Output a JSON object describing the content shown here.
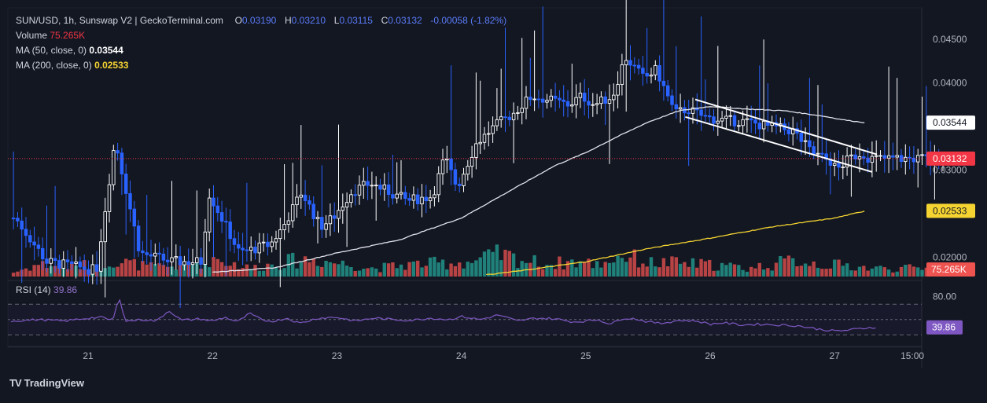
{
  "header": {
    "symbol": "SUN/USD, 1h, Sunswap V2 | GeckoTerminal.com",
    "o_label": "O",
    "o_value": "0.03190",
    "h_label": "H",
    "h_value": "0.03210",
    "l_label": "L",
    "l_value": "0.03115",
    "c_label": "C",
    "c_value": "0.03132",
    "change": "-0.00058 (-1.82%)",
    "volume_label": "Volume",
    "volume_value": "75.265K",
    "ma50_label": "MA (50, close, 0)",
    "ma50_value": "0.03544",
    "ma200_label": "MA (200, close, 0)",
    "ma200_value": "0.02533",
    "rsi_label": "RSI (14)",
    "rsi_value": "39.86"
  },
  "brand": {
    "name": "TradingView",
    "logo": "TV"
  },
  "colors": {
    "background": "#131722",
    "up": "#ffffff",
    "down": "#2962ff",
    "vol_up": "#26a69a",
    "vol_down": "#ef5350",
    "ma50": "#e0e3eb",
    "ma200": "#f5d431",
    "rsi": "#7e57c2",
    "last_price": "#f23645"
  },
  "chart_data": [
    {
      "type": "candlestick",
      "title": "SUN/USD, 1h, Sunswap V2 | GeckoTerminal.com",
      "ylim": [
        0.0178,
        0.0468
      ],
      "yticks": [
        "0.04500",
        "0.04000",
        "0.03500",
        "0.03000",
        "0.02000"
      ],
      "ytick_values": [
        0.045,
        0.04,
        0.035,
        0.03,
        0.02
      ],
      "xlabels": [
        "21",
        "22",
        "23",
        "24",
        "25",
        "26",
        "27",
        "15:00"
      ],
      "xlabel_positions": [
        0.0,
        1.0,
        2.0,
        3.0,
        4.0,
        5.0,
        6.0,
        6.625
      ],
      "x_start": -0.6,
      "x_end": 6.88,
      "ohlc_anchors": [
        [
          -0.55,
          0.0245
        ],
        [
          -0.3,
          0.0195
        ],
        [
          0.1,
          0.0185
        ],
        [
          0.25,
          0.0335
        ],
        [
          0.45,
          0.0205
        ],
        [
          0.7,
          0.0195
        ],
        [
          0.95,
          0.0195
        ],
        [
          1.0,
          0.0275
        ],
        [
          1.25,
          0.0205
        ],
        [
          1.5,
          0.0215
        ],
        [
          1.6,
          0.0235
        ],
        [
          1.75,
          0.0275
        ],
        [
          1.9,
          0.0235
        ],
        [
          2.0,
          0.0245
        ],
        [
          2.15,
          0.0275
        ],
        [
          2.3,
          0.0285
        ],
        [
          2.45,
          0.0275
        ],
        [
          2.6,
          0.0265
        ],
        [
          2.8,
          0.027
        ],
        [
          2.9,
          0.0315
        ],
        [
          3.0,
          0.028
        ],
        [
          3.15,
          0.033
        ],
        [
          3.3,
          0.035
        ],
        [
          3.45,
          0.0365
        ],
        [
          3.6,
          0.0385
        ],
        [
          3.75,
          0.038
        ],
        [
          3.9,
          0.0375
        ],
        [
          4.0,
          0.0385
        ],
        [
          4.1,
          0.0375
        ],
        [
          4.25,
          0.0385
        ],
        [
          4.35,
          0.043
        ],
        [
          4.5,
          0.0405
        ],
        [
          4.6,
          0.0415
        ],
        [
          4.75,
          0.0365
        ],
        [
          4.85,
          0.037
        ],
        [
          5.0,
          0.036
        ],
        [
          5.15,
          0.0357
        ],
        [
          5.35,
          0.0355
        ],
        [
          5.5,
          0.035
        ],
        [
          5.7,
          0.0345
        ],
        [
          5.85,
          0.032
        ],
        [
          6.0,
          0.031
        ],
        [
          6.05,
          0.03
        ],
        [
          6.15,
          0.0313
        ],
        [
          6.25,
          0.032
        ],
        [
          6.3,
          0.0315
        ],
        [
          6.33,
          0.03132
        ]
      ],
      "ma50": [
        [
          1.0,
          0.0183
        ],
        [
          1.5,
          0.0188
        ],
        [
          2.0,
          0.0205
        ],
        [
          2.5,
          0.022
        ],
        [
          3.0,
          0.0245
        ],
        [
          3.25,
          0.0265
        ],
        [
          3.5,
          0.0285
        ],
        [
          3.75,
          0.0305
        ],
        [
          4.0,
          0.032
        ],
        [
          4.25,
          0.0338
        ],
        [
          4.5,
          0.0355
        ],
        [
          4.75,
          0.0368
        ],
        [
          5.0,
          0.0373
        ],
        [
          5.3,
          0.037
        ],
        [
          5.6,
          0.0368
        ],
        [
          5.9,
          0.0362
        ],
        [
          6.1,
          0.0357
        ],
        [
          6.25,
          0.03544
        ]
      ],
      "ma200": [
        [
          3.2,
          0.018
        ],
        [
          3.5,
          0.0185
        ],
        [
          4.0,
          0.0195
        ],
        [
          4.5,
          0.021
        ],
        [
          5.0,
          0.0222
        ],
        [
          5.5,
          0.0235
        ],
        [
          6.0,
          0.0245
        ],
        [
          6.25,
          0.02533
        ]
      ],
      "trendlines": [
        {
          "from": [
            4.88,
            0.0381
          ],
          "to": [
            6.34,
            0.0318
          ]
        },
        {
          "from": [
            4.8,
            0.0361
          ],
          "to": [
            6.3,
            0.0298
          ]
        }
      ],
      "last_price": 0.03132,
      "price_labels": [
        {
          "value": 0.03544,
          "text": "0.03544",
          "style": "ma50"
        },
        {
          "value": 0.03132,
          "text": "0.03132",
          "style": "last"
        },
        {
          "value": 0.02533,
          "text": "0.02533",
          "style": "ma200"
        }
      ]
    },
    {
      "type": "bar",
      "title": "Volume",
      "series_name": "Volume",
      "last_value_text": "75.265K",
      "max_relative": 1.0,
      "volume_anchors": [
        [
          -0.6,
          0.15
        ],
        [
          -0.4,
          0.45
        ],
        [
          -0.1,
          0.35
        ],
        [
          0.2,
          0.6
        ],
        [
          0.5,
          0.35
        ],
        [
          0.8,
          0.4
        ],
        [
          1.0,
          0.7
        ],
        [
          1.3,
          0.3
        ],
        [
          1.6,
          0.55
        ],
        [
          1.8,
          0.65
        ],
        [
          2.0,
          0.5
        ],
        [
          2.3,
          0.3
        ],
        [
          2.6,
          0.45
        ],
        [
          2.9,
          0.5
        ],
        [
          3.1,
          0.55
        ],
        [
          3.3,
          0.8
        ],
        [
          3.5,
          0.6
        ],
        [
          3.7,
          0.45
        ],
        [
          3.9,
          0.55
        ],
        [
          4.1,
          0.45
        ],
        [
          4.3,
          0.8
        ],
        [
          4.5,
          0.5
        ],
        [
          4.7,
          0.5
        ],
        [
          4.9,
          0.45
        ],
        [
          5.1,
          0.4
        ],
        [
          5.3,
          0.3
        ],
        [
          5.5,
          0.45
        ],
        [
          5.7,
          0.6
        ],
        [
          5.9,
          0.45
        ],
        [
          6.1,
          0.4
        ],
        [
          6.3,
          0.3
        ]
      ]
    },
    {
      "type": "line",
      "title": "RSI (14)",
      "series_name": "RSI",
      "ylim": [
        20,
        95
      ],
      "levels": [
        70,
        50,
        30
      ],
      "ytick_text": "80.00",
      "ytick_value": 80,
      "last_value_text": "39.86",
      "rsi_anchors": [
        [
          -0.62,
          48
        ],
        [
          -0.4,
          50
        ],
        [
          -0.2,
          48
        ],
        [
          0.0,
          52
        ],
        [
          0.1,
          53
        ],
        [
          0.2,
          49
        ],
        [
          0.25,
          80
        ],
        [
          0.3,
          48
        ],
        [
          0.45,
          50
        ],
        [
          0.55,
          48
        ],
        [
          0.65,
          62
        ],
        [
          0.75,
          49
        ],
        [
          0.9,
          51
        ],
        [
          1.0,
          48
        ],
        [
          1.1,
          53
        ],
        [
          1.2,
          47
        ],
        [
          1.3,
          58
        ],
        [
          1.4,
          49
        ],
        [
          1.5,
          48
        ],
        [
          1.6,
          52
        ],
        [
          1.7,
          45
        ],
        [
          1.85,
          52
        ],
        [
          2.0,
          53
        ],
        [
          2.15,
          48
        ],
        [
          2.3,
          52
        ],
        [
          2.45,
          50
        ],
        [
          2.6,
          49
        ],
        [
          2.75,
          52
        ],
        [
          2.9,
          50
        ],
        [
          3.0,
          54
        ],
        [
          3.15,
          50
        ],
        [
          3.3,
          56
        ],
        [
          3.45,
          48
        ],
        [
          3.6,
          52
        ],
        [
          3.75,
          51
        ],
        [
          3.9,
          47
        ],
        [
          4.0,
          48
        ],
        [
          4.1,
          50
        ],
        [
          4.2,
          44
        ],
        [
          4.3,
          52
        ],
        [
          4.4,
          51
        ],
        [
          4.5,
          47
        ],
        [
          4.6,
          45
        ],
        [
          4.75,
          49
        ],
        [
          4.9,
          48
        ],
        [
          5.0,
          44
        ],
        [
          5.1,
          46
        ],
        [
          5.25,
          43
        ],
        [
          5.4,
          44
        ],
        [
          5.55,
          43
        ],
        [
          5.7,
          42
        ],
        [
          5.85,
          38
        ],
        [
          6.0,
          35
        ],
        [
          6.1,
          36
        ],
        [
          6.2,
          38
        ],
        [
          6.3,
          40
        ],
        [
          6.34,
          39.86
        ]
      ]
    }
  ]
}
